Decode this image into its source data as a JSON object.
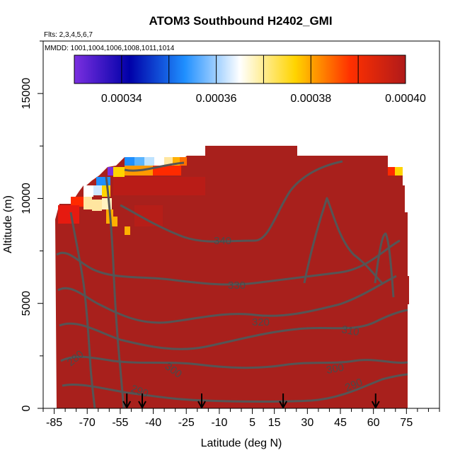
{
  "chart_data": {
    "type": "heatmap",
    "title": "ATOM3 Southbound H2402_GMI",
    "flights_note": "Flts: 2,3,4,5,6,7",
    "dates_note": "MMDD: 1001,1004,1006,1008,1011,1014",
    "xlabel": "Latitude (deg N)",
    "ylabel": "Altitude (m)",
    "xlim": [
      -90,
      90
    ],
    "ylim": [
      0,
      17500
    ],
    "x_ticks": [
      -85,
      -70,
      -55,
      -40,
      -25,
      -10,
      5,
      15,
      30,
      45,
      60,
      75
    ],
    "x_tick_labels": [
      "-85",
      "-70",
      "-55",
      "-40",
      "-25",
      "-10",
      "5",
      "15",
      "30",
      "45",
      "60",
      "75"
    ],
    "y_ticks": [
      0,
      5000,
      10000,
      15000
    ],
    "y_tick_labels": [
      "0",
      "5000",
      "10000",
      "15000"
    ],
    "colorbar": {
      "range": [
        0.00033,
        0.0004
      ],
      "ticks": [
        0.00034,
        0.00036,
        0.00038,
        0.0004
      ],
      "tick_labels": [
        "0.00034",
        "0.00036",
        "0.00038",
        "0.00040"
      ],
      "colors": [
        "#7b2fe0",
        "#0000a8",
        "#1f8fff",
        "#ffffff",
        "#ffd400",
        "#ff3000",
        "#b01a1a"
      ]
    },
    "field_color": "#a8201c",
    "contour_levels": [
      {
        "value": 290,
        "label": "290"
      },
      {
        "value": 300,
        "label": "300"
      },
      {
        "value": 310,
        "label": "310"
      },
      {
        "value": 320,
        "label": "320"
      },
      {
        "value": 330,
        "label": "330"
      },
      {
        "value": 340,
        "label": "340"
      }
    ],
    "flight_markers_lat": [
      -52,
      -45,
      -18,
      19,
      61
    ]
  }
}
